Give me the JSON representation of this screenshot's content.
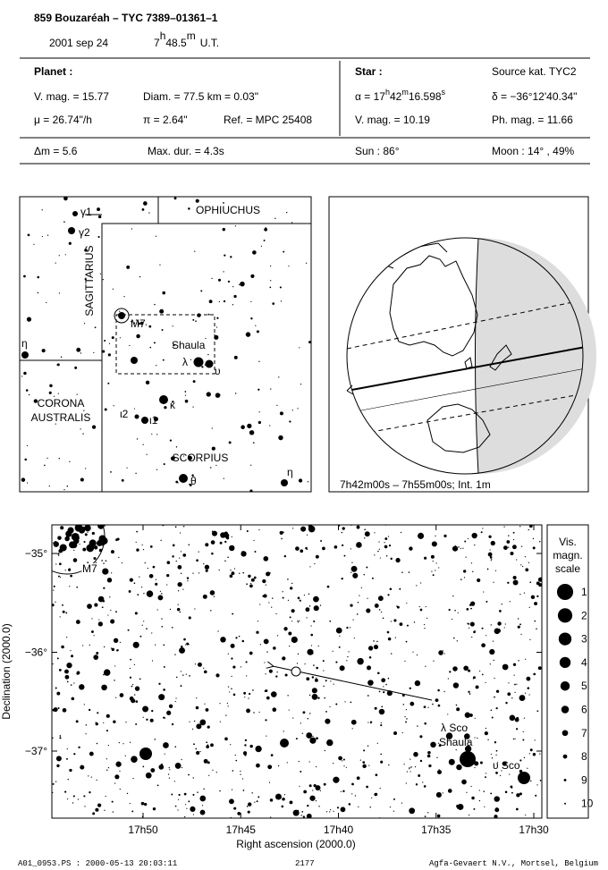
{
  "header": {
    "title": "859 Bouzaréah  –  TYC 7389–01361–1",
    "date": "2001 sep 24",
    "time": [
      "7",
      "h",
      "48.5",
      "m",
      "U.T."
    ]
  },
  "planet": {
    "heading": "Planet :",
    "vmag": "V. mag. = 15.77",
    "diam": "Diam. = 77.5 km = 0.03\"",
    "mu": "μ =  26.74\"/h",
    "pi": "π =  2.64\"",
    "ref": "Ref. = MPC 25408"
  },
  "star": {
    "heading": "Star :",
    "source": "Source kat.  TYC2",
    "alpha": [
      "α = 17",
      "h",
      "42",
      "m",
      "16.598",
      "s"
    ],
    "delta": "δ = −36°12'40.34\"",
    "vmag": "V. mag. = 10.19",
    "phmag": "Ph. mag. = 11.66"
  },
  "circumstances": {
    "dm": "Δm = 5.6",
    "maxdur": "Max. dur. = 4.3s",
    "sun": "Sun :  86°",
    "moon": "Moon :  14° , 49%"
  },
  "finder": {
    "constellations": [
      "OPHIUCHUS",
      "SAGITTARIUS",
      "CORONA",
      "AUSTRALIS",
      "SCORPIUS"
    ],
    "labels": {
      "gamma1": "γ1",
      "gamma2": "γ2",
      "m7": "M7",
      "shaula": "Shaula",
      "lambda": "λ",
      "upsilon": "υ",
      "eta_left": "η",
      "kappa": "κ",
      "iota2": "ι2",
      "iota1": "ι1",
      "theta": "θ",
      "eta_right": "η"
    }
  },
  "globe": {
    "caption": "7h42m00s –  7h55m00s;  Int.  1m"
  },
  "detail": {
    "yticks": [
      {
        "value": -35,
        "label": "−35°"
      },
      {
        "value": -36,
        "label": "−36°"
      },
      {
        "value": -37,
        "label": "−37°"
      }
    ],
    "xticks": [
      {
        "value": 1070,
        "label": "17h50"
      },
      {
        "value": 1065,
        "label": "17h45"
      },
      {
        "value": 1060,
        "label": "17h40"
      },
      {
        "value": 1055,
        "label": "17h35"
      },
      {
        "value": 1050,
        "label": "17h30"
      }
    ],
    "xlabel": "Right ascension (2000.0)",
    "ylabel": "Declination (2000.0)",
    "labels": {
      "m7": "M7",
      "lambda": "λ Sco",
      "shaula": "Shaula",
      "upsilon": "υ Sco"
    }
  },
  "scale": {
    "title": [
      "Vis.",
      "magn.",
      "scale"
    ],
    "mags": [
      1,
      2,
      3,
      4,
      5,
      6,
      7,
      8,
      9,
      10
    ]
  },
  "footer": {
    "file": "A01_0953.PS : 2000-05-13 20:03:11",
    "number": "2177",
    "credit": "Agfa-Gevaert N.V., Mortsel, Belgium"
  }
}
